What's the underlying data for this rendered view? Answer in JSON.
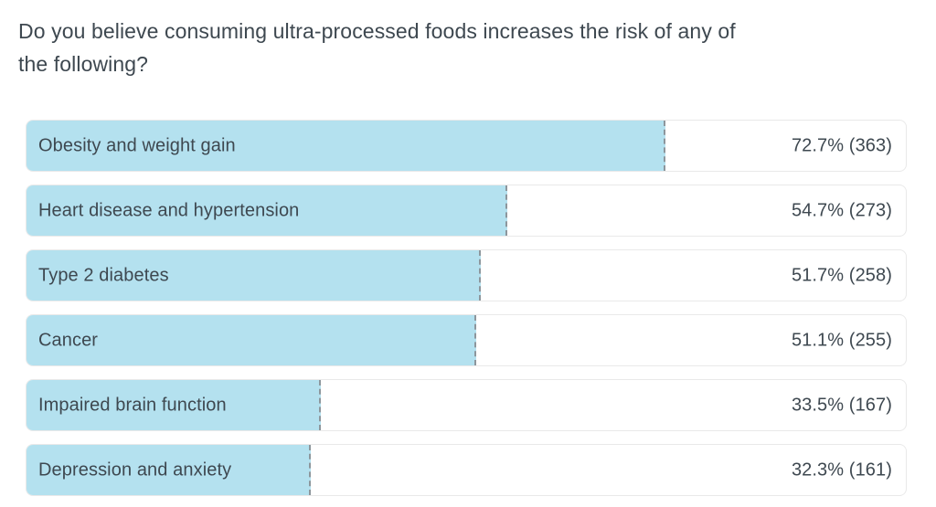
{
  "question": {
    "full": "Do you believe consuming ultra-processed foods increases the risk of any of the following?",
    "line1": "Do you believe consuming ultra-processed foods increases the risk of any of",
    "line2": "the following?"
  },
  "chart_data": {
    "type": "bar",
    "orientation": "horizontal",
    "title": "Do you believe consuming ultra-processed foods increases the risk of any of the following?",
    "categories": [
      "Obesity and weight gain",
      "Heart disease and hypertension",
      "Type 2 diabetes",
      "Cancer",
      "Impaired brain function",
      "Depression and anxiety"
    ],
    "values_percent": [
      72.7,
      54.7,
      51.7,
      51.1,
      33.5,
      32.3
    ],
    "counts": [
      363,
      273,
      258,
      255,
      167,
      161
    ],
    "value_labels": [
      "72.7% (363)",
      "54.7% (273)",
      "51.7% (258)",
      "51.1% (255)",
      "33.5% (167)",
      "32.3% (161)"
    ],
    "xlim": [
      0,
      100
    ],
    "grid": false,
    "legend": "none",
    "bar_color": "#b4e1ef"
  },
  "colors": {
    "background": "#ffffff",
    "text": "#3e4850",
    "bar_fill": "#b4e1ef",
    "row_border": "#e9e9e9",
    "bar_edge_dashed": "#8d969c"
  }
}
